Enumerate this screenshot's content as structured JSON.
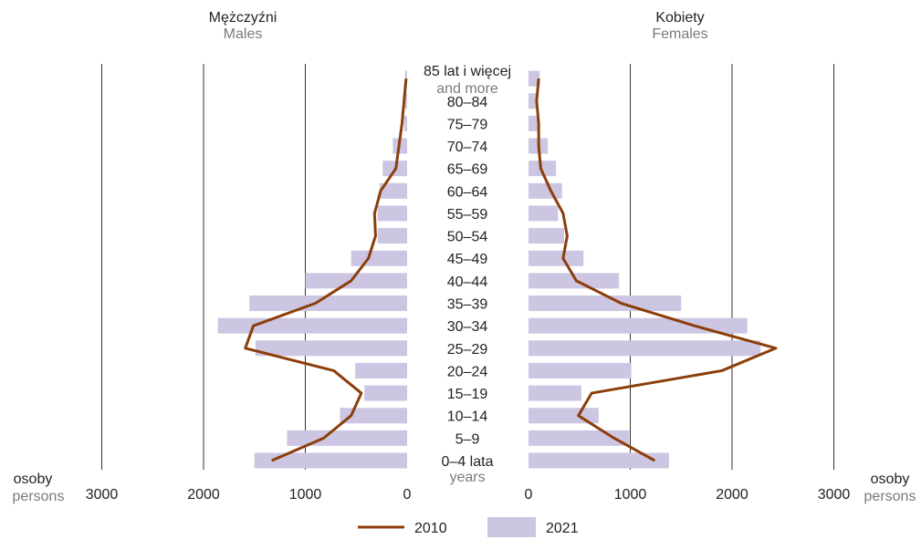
{
  "chart_data": {
    "type": "bar",
    "left_title": "Mężczyźni",
    "left_subtitle": "Males",
    "right_title": "Kobiety",
    "right_subtitle": "Females",
    "unit_label": "osoby",
    "unit_sublabel": "persons",
    "categories": [
      "0–4 lata",
      "5–9",
      "10–14",
      "15–19",
      "20–24",
      "25–29",
      "30–34",
      "35–39",
      "40–44",
      "45–49",
      "50–54",
      "55–59",
      "60–64",
      "65–69",
      "70–74",
      "75–79",
      "80–84",
      "85 lat i więcej"
    ],
    "category_sublabels": {
      "first": "years",
      "last": "and more"
    },
    "xlim": [
      0,
      3000
    ],
    "ticks": [
      "0",
      "1000",
      "2000",
      "3000"
    ],
    "tick_values": [
      0,
      1000,
      2000,
      3000
    ],
    "grid": true,
    "legend_position": "bottom",
    "series": [
      {
        "name": "2021",
        "type": "bar",
        "color": "#cdc6e2",
        "males": [
          1500,
          1180,
          660,
          420,
          510,
          1490,
          1860,
          1550,
          1000,
          550,
          290,
          290,
          270,
          240,
          140,
          30,
          20,
          20
        ],
        "females": [
          1380,
          990,
          690,
          520,
          1010,
          2280,
          2150,
          1500,
          890,
          540,
          350,
          290,
          330,
          270,
          190,
          100,
          80,
          110
        ]
      },
      {
        "name": "2010",
        "type": "line",
        "color": "#8b3e0a",
        "males": [
          1330,
          820,
          550,
          450,
          720,
          1590,
          1510,
          900,
          550,
          380,
          310,
          320,
          260,
          110,
          80,
          50,
          30,
          10
        ],
        "females": [
          1240,
          840,
          490,
          620,
          1900,
          2430,
          1630,
          910,
          470,
          340,
          380,
          340,
          220,
          120,
          100,
          100,
          80,
          100
        ]
      }
    ]
  }
}
